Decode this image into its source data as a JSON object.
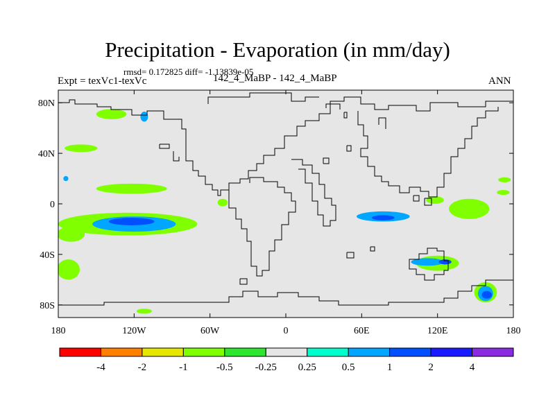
{
  "chart_data": {
    "type": "heatmap",
    "title": "Precipitation - Evaporation (in mm/day)",
    "stats": "rmsd= 0.172825  diff= -1.13839e-05",
    "expt": "Expt = texVc1-texVc",
    "case": "142_4_MaBP - 142_4_MaBP",
    "season": "ANN",
    "x_range": [
      -180,
      180
    ],
    "y_range": [
      -90,
      90
    ],
    "xticks": [
      {
        "value": -180,
        "label": "180"
      },
      {
        "value": -120,
        "label": "120W"
      },
      {
        "value": -60,
        "label": "60W"
      },
      {
        "value": 0,
        "label": "0"
      },
      {
        "value": 60,
        "label": "60E"
      },
      {
        "value": 120,
        "label": "120E"
      },
      {
        "value": 180,
        "label": "180"
      }
    ],
    "yticks": [
      {
        "value": 80,
        "label": "80N"
      },
      {
        "value": 40,
        "label": "40N"
      },
      {
        "value": 0,
        "label": "0"
      },
      {
        "value": -40,
        "label": "40S"
      },
      {
        "value": -80,
        "label": "80S"
      }
    ],
    "colorbar": {
      "colors": [
        "#ff0000",
        "#ff8000",
        "#e6e600",
        "#80ff00",
        "#2ee62e",
        "#e6e6e6",
        "#00ffcc",
        "#00a6ff",
        "#0050ff",
        "#1a1aff",
        "#8a2be2"
      ],
      "labels": [
        "-4",
        "-2",
        "-1",
        "-0.5",
        "-0.25",
        "0.25",
        "0.5",
        "1",
        "2",
        "4"
      ]
    },
    "background_color": "#e6e6e6",
    "regions": [
      {
        "level": "-0.5",
        "lon": -138,
        "lat": 71,
        "rlon": 12,
        "rlat": 4
      },
      {
        "level": "0.5",
        "lon": -112,
        "lat": 69,
        "rlon": 3,
        "rlat": 4
      },
      {
        "level": "-0.5",
        "lon": -162,
        "lat": 44,
        "rlon": 13,
        "rlat": 3
      },
      {
        "level": "0.5",
        "lon": -174,
        "lat": 20,
        "rlon": 2,
        "rlat": 2
      },
      {
        "level": "-0.5",
        "lon": -122,
        "lat": 12,
        "rlon": 28,
        "rlat": 4
      },
      {
        "level": "-0.5",
        "lon": -50,
        "lat": 1,
        "rlon": 4,
        "rlat": 3
      },
      {
        "level": "-0.5",
        "lon": -125,
        "lat": -16,
        "rlon": 55,
        "rlat": 9
      },
      {
        "level": "0.5",
        "lon": -120,
        "lat": -16,
        "rlon": 33,
        "rlat": 6
      },
      {
        "level": "1",
        "lon": -122,
        "lat": -14,
        "rlon": 18,
        "rlat": 3
      },
      {
        "level": "-0.5",
        "lon": -170,
        "lat": -24,
        "rlon": 11,
        "rlat": 6
      },
      {
        "level": "-0.5",
        "lon": -172,
        "lat": -52,
        "rlon": 9,
        "rlat": 8
      },
      {
        "level": "-0.5",
        "lon": -112,
        "lat": -85,
        "rlon": 6,
        "rlat": 2
      },
      {
        "level": "0.5",
        "lon": 77,
        "lat": -10,
        "rlon": 21,
        "rlat": 4
      },
      {
        "level": "1",
        "lon": 77,
        "lat": -11,
        "rlon": 9,
        "rlat": 2
      },
      {
        "level": "-0.5",
        "lon": 145,
        "lat": -4,
        "rlon": 16,
        "rlat": 8
      },
      {
        "level": "-0.5",
        "lon": 118,
        "lat": 3,
        "rlon": 7,
        "rlat": 3
      },
      {
        "level": "-0.5",
        "lon": 173,
        "lat": 19,
        "rlon": 5,
        "rlat": 2
      },
      {
        "level": "-0.5",
        "lon": 172,
        "lat": 9,
        "rlon": 5,
        "rlat": 2
      },
      {
        "level": "-0.5",
        "lon": 120,
        "lat": -47,
        "rlon": 17,
        "rlat": 6
      },
      {
        "level": "0.5",
        "lon": 112,
        "lat": -46,
        "rlon": 13,
        "rlat": 3
      },
      {
        "level": "1",
        "lon": 126,
        "lat": -46,
        "rlon": 5,
        "rlat": 2
      },
      {
        "level": "-0.5",
        "lon": 158,
        "lat": -70,
        "rlon": 9,
        "rlat": 8
      },
      {
        "level": "0.5",
        "lon": 158,
        "lat": -71,
        "rlon": 6,
        "rlat": 6
      },
      {
        "level": "1",
        "lon": 159,
        "lat": -72,
        "rlon": 4,
        "rlat": 3
      }
    ]
  }
}
